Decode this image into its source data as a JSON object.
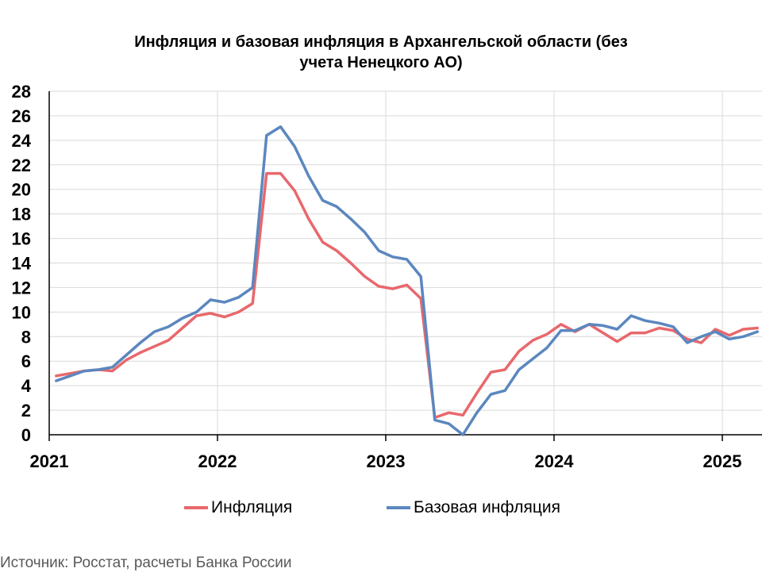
{
  "chart_data": {
    "type": "line",
    "title_line1": "Инфляция и базовая инфляция в Архангельской области (без",
    "title_line2": "учета Ненецкого АО)",
    "x_tick_labels": [
      "2021",
      "2022",
      "2023",
      "2024",
      "2025"
    ],
    "y_tick_labels": [
      "0",
      "2",
      "4",
      "6",
      "8",
      "10",
      "12",
      "14",
      "16",
      "18",
      "20",
      "22",
      "24",
      "26",
      "28"
    ],
    "ylim": [
      0,
      28
    ],
    "y_step": 2,
    "x_start": "2021-01",
    "grid": true,
    "legend_position": "bottom",
    "series": [
      {
        "name": "Инфляция",
        "color": "#E8686C",
        "values": [
          4.8,
          5.0,
          5.2,
          5.3,
          5.2,
          6.1,
          6.7,
          7.2,
          7.7,
          8.7,
          9.7,
          9.9,
          9.6,
          10.0,
          10.7,
          21.3,
          21.3,
          19.9,
          17.6,
          15.7,
          15.0,
          14.0,
          12.9,
          12.1,
          11.9,
          12.2,
          11.1,
          1.4,
          1.8,
          1.6,
          3.4,
          5.1,
          5.3,
          6.8,
          7.7,
          8.2,
          9.0,
          8.4,
          9.0,
          8.3,
          7.6,
          8.3,
          8.3,
          8.7,
          8.5,
          7.8,
          7.5,
          8.6,
          8.1,
          8.6,
          8.7
        ]
      },
      {
        "name": "Базовая инфляция",
        "color": "#5B87BF",
        "values": [
          4.4,
          4.8,
          5.2,
          5.3,
          5.5,
          6.5,
          7.5,
          8.4,
          8.8,
          9.5,
          10.0,
          11.0,
          10.8,
          11.2,
          12.0,
          24.4,
          25.1,
          23.5,
          21.1,
          19.1,
          18.6,
          17.6,
          16.5,
          15.0,
          14.5,
          14.3,
          12.9,
          1.2,
          0.9,
          0.0,
          1.8,
          3.3,
          3.6,
          5.3,
          6.2,
          7.1,
          8.5,
          8.5,
          9.0,
          8.9,
          8.6,
          9.7,
          9.3,
          9.1,
          8.8,
          7.5,
          8.0,
          8.4,
          7.8,
          8.0,
          8.4
        ]
      }
    ]
  },
  "source_text": "Источник: Росстат, расчеты Банка России"
}
